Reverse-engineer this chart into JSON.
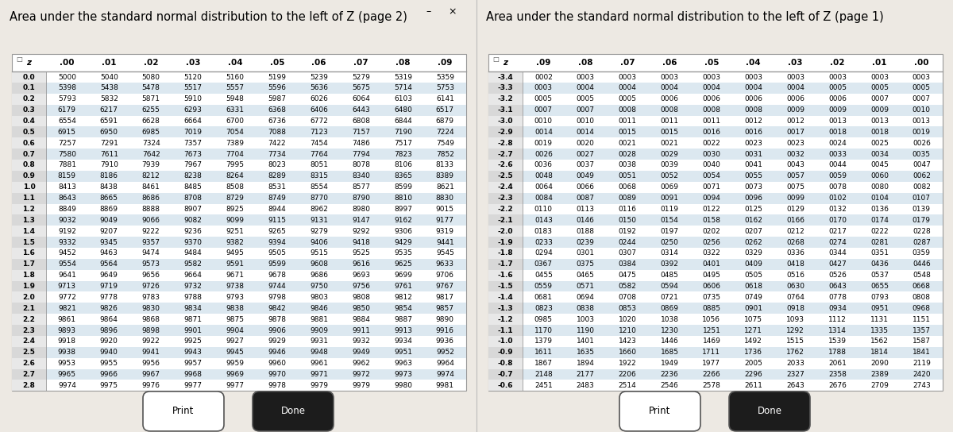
{
  "page2_title": "Area under the standard normal distribution to the left of Z (page 2)",
  "page1_title": "Area under the standard normal distribution to the left of Z (page 1)",
  "page2_cols": [
    ".00",
    ".01",
    ".02",
    ".03",
    ".04",
    ".05",
    ".06",
    ".07",
    ".08",
    ".09"
  ],
  "page2_rows": [
    [
      "0.0",
      "5000",
      "5040",
      "5080",
      "5120",
      "5160",
      "5199",
      "5239",
      "5279",
      "5319",
      "5359"
    ],
    [
      "0.1",
      "5398",
      "5438",
      "5478",
      "5517",
      "5557",
      "5596",
      "5636",
      "5675",
      "5714",
      "5753"
    ],
    [
      "0.2",
      "5793",
      "5832",
      "5871",
      "5910",
      "5948",
      "5987",
      "6026",
      "6064",
      "6103",
      "6141"
    ],
    [
      "0.3",
      "6179",
      "6217",
      "6255",
      "6293",
      "6331",
      "6368",
      "6406",
      "6443",
      "6480",
      "6517"
    ],
    [
      "0.4",
      "6554",
      "6591",
      "6628",
      "6664",
      "6700",
      "6736",
      "6772",
      "6808",
      "6844",
      "6879"
    ],
    [
      "0.5",
      "6915",
      "6950",
      "6985",
      "7019",
      "7054",
      "7088",
      "7123",
      "7157",
      "7190",
      "7224"
    ],
    [
      "0.6",
      "7257",
      "7291",
      "7324",
      "7357",
      "7389",
      "7422",
      "7454",
      "7486",
      "7517",
      "7549"
    ],
    [
      "0.7",
      "7580",
      "7611",
      "7642",
      "7673",
      "7704",
      "7734",
      "7764",
      "7794",
      "7823",
      "7852"
    ],
    [
      "0.8",
      "7881",
      "7910",
      "7939",
      "7967",
      "7995",
      "8023",
      "8051",
      "8078",
      "8106",
      "8133"
    ],
    [
      "0.9",
      "8159",
      "8186",
      "8212",
      "8238",
      "8264",
      "8289",
      "8315",
      "8340",
      "8365",
      "8389"
    ],
    [
      "1.0",
      "8413",
      "8438",
      "8461",
      "8485",
      "8508",
      "8531",
      "8554",
      "8577",
      "8599",
      "8621"
    ],
    [
      "1.1",
      "8643",
      "8665",
      "8686",
      "8708",
      "8729",
      "8749",
      "8770",
      "8790",
      "8810",
      "8830"
    ],
    [
      "1.2",
      "8849",
      "8869",
      "8888",
      "8907",
      "8925",
      "8944",
      "8962",
      "8980",
      "8997",
      "9015"
    ],
    [
      "1.3",
      "9032",
      "9049",
      "9066",
      "9082",
      "9099",
      "9115",
      "9131",
      "9147",
      "9162",
      "9177"
    ],
    [
      "1.4",
      "9192",
      "9207",
      "9222",
      "9236",
      "9251",
      "9265",
      "9279",
      "9292",
      "9306",
      "9319"
    ],
    [
      "1.5",
      "9332",
      "9345",
      "9357",
      "9370",
      "9382",
      "9394",
      "9406",
      "9418",
      "9429",
      "9441"
    ],
    [
      "1.6",
      "9452",
      "9463",
      "9474",
      "9484",
      "9495",
      "9505",
      "9515",
      "9525",
      "9535",
      "9545"
    ],
    [
      "1.7",
      "9554",
      "9564",
      "9573",
      "9582",
      "9591",
      "9599",
      "9608",
      "9616",
      "9625",
      "9633"
    ],
    [
      "1.8",
      "9641",
      "9649",
      "9656",
      "9664",
      "9671",
      "9678",
      "9686",
      "9693",
      "9699",
      "9706"
    ],
    [
      "1.9",
      "9713",
      "9719",
      "9726",
      "9732",
      "9738",
      "9744",
      "9750",
      "9756",
      "9761",
      "9767"
    ],
    [
      "2.0",
      "9772",
      "9778",
      "9783",
      "9788",
      "9793",
      "9798",
      "9803",
      "9808",
      "9812",
      "9817"
    ],
    [
      "2.1",
      "9821",
      "9826",
      "9830",
      "9834",
      "9838",
      "9842",
      "9846",
      "9850",
      "9854",
      "9857"
    ],
    [
      "2.2",
      "9861",
      "9864",
      "9868",
      "9871",
      "9875",
      "9878",
      "9881",
      "9884",
      "9887",
      "9890"
    ],
    [
      "2.3",
      "9893",
      "9896",
      "9898",
      "9901",
      "9904",
      "9906",
      "9909",
      "9911",
      "9913",
      "9916"
    ],
    [
      "2.4",
      "9918",
      "9920",
      "9922",
      "9925",
      "9927",
      "9929",
      "9931",
      "9932",
      "9934",
      "9936"
    ],
    [
      "2.5",
      "9938",
      "9940",
      "9941",
      "9943",
      "9945",
      "9946",
      "9948",
      "9949",
      "9951",
      "9952"
    ],
    [
      "2.6",
      "9953",
      "9955",
      "9956",
      "9957",
      "9959",
      "9960",
      "9961",
      "9962",
      "9963",
      "9964"
    ],
    [
      "2.7",
      "9965",
      "9966",
      "9967",
      "9968",
      "9969",
      "9970",
      "9971",
      "9972",
      "9973",
      "9974"
    ],
    [
      "2.8",
      "9974",
      "9975",
      "9976",
      "9977",
      "9977",
      "9978",
      "9979",
      "9979",
      "9980",
      "9981"
    ]
  ],
  "page1_cols": [
    ".09",
    ".08",
    ".07",
    ".06",
    ".05",
    ".04",
    ".03",
    ".02",
    ".01",
    ".00"
  ],
  "page1_rows": [
    [
      "-3.4",
      "0002",
      "0003",
      "0003",
      "0003",
      "0003",
      "0003",
      "0003",
      "0003",
      "0003",
      "0003"
    ],
    [
      "-3.3",
      "0003",
      "0004",
      "0004",
      "0004",
      "0004",
      "0004",
      "0004",
      "0005",
      "0005",
      "0005"
    ],
    [
      "-3.2",
      "0005",
      "0005",
      "0005",
      "0006",
      "0006",
      "0006",
      "0006",
      "0006",
      "0007",
      "0007"
    ],
    [
      "-3.1",
      "0007",
      "0007",
      "0008",
      "0008",
      "0008",
      "0008",
      "0009",
      "0009",
      "0009",
      "0010"
    ],
    [
      "-3.0",
      "0010",
      "0010",
      "0011",
      "0011",
      "0011",
      "0012",
      "0012",
      "0013",
      "0013",
      "0013"
    ],
    [
      "-2.9",
      "0014",
      "0014",
      "0015",
      "0015",
      "0016",
      "0016",
      "0017",
      "0018",
      "0018",
      "0019"
    ],
    [
      "-2.8",
      "0019",
      "0020",
      "0021",
      "0021",
      "0022",
      "0023",
      "0023",
      "0024",
      "0025",
      "0026"
    ],
    [
      "-2.7",
      "0026",
      "0027",
      "0028",
      "0029",
      "0030",
      "0031",
      "0032",
      "0033",
      "0034",
      "0035"
    ],
    [
      "-2.6",
      "0036",
      "0037",
      "0038",
      "0039",
      "0040",
      "0041",
      "0043",
      "0044",
      "0045",
      "0047"
    ],
    [
      "-2.5",
      "0048",
      "0049",
      "0051",
      "0052",
      "0054",
      "0055",
      "0057",
      "0059",
      "0060",
      "0062"
    ],
    [
      "-2.4",
      "0064",
      "0066",
      "0068",
      "0069",
      "0071",
      "0073",
      "0075",
      "0078",
      "0080",
      "0082"
    ],
    [
      "-2.3",
      "0084",
      "0087",
      "0089",
      "0091",
      "0094",
      "0096",
      "0099",
      "0102",
      "0104",
      "0107"
    ],
    [
      "-2.2",
      "0110",
      "0113",
      "0116",
      "0119",
      "0122",
      "0125",
      "0129",
      "0132",
      "0136",
      "0139"
    ],
    [
      "-2.1",
      "0143",
      "0146",
      "0150",
      "0154",
      "0158",
      "0162",
      "0166",
      "0170",
      "0174",
      "0179"
    ],
    [
      "-2.0",
      "0183",
      "0188",
      "0192",
      "0197",
      "0202",
      "0207",
      "0212",
      "0217",
      "0222",
      "0228"
    ],
    [
      "-1.9",
      "0233",
      "0239",
      "0244",
      "0250",
      "0256",
      "0262",
      "0268",
      "0274",
      "0281",
      "0287"
    ],
    [
      "-1.8",
      "0294",
      "0301",
      "0307",
      "0314",
      "0322",
      "0329",
      "0336",
      "0344",
      "0351",
      "0359"
    ],
    [
      "-1.7",
      "0367",
      "0375",
      "0384",
      "0392",
      "0401",
      "0409",
      "0418",
      "0427",
      "0436",
      "0446"
    ],
    [
      "-1.6",
      "0455",
      "0465",
      "0475",
      "0485",
      "0495",
      "0505",
      "0516",
      "0526",
      "0537",
      "0548"
    ],
    [
      "-1.5",
      "0559",
      "0571",
      "0582",
      "0594",
      "0606",
      "0618",
      "0630",
      "0643",
      "0655",
      "0668"
    ],
    [
      "-1.4",
      "0681",
      "0694",
      "0708",
      "0721",
      "0735",
      "0749",
      "0764",
      "0778",
      "0793",
      "0808"
    ],
    [
      "-1.3",
      "0823",
      "0838",
      "0853",
      "0869",
      "0885",
      "0901",
      "0918",
      "0934",
      "0951",
      "0968"
    ],
    [
      "-1.2",
      "0985",
      "1003",
      "1020",
      "1038",
      "1056",
      "1075",
      "1093",
      "1112",
      "1131",
      "1151"
    ],
    [
      "-1.1",
      "1170",
      "1190",
      "1210",
      "1230",
      "1251",
      "1271",
      "1292",
      "1314",
      "1335",
      "1357"
    ],
    [
      "-1.0",
      "1379",
      "1401",
      "1423",
      "1446",
      "1469",
      "1492",
      "1515",
      "1539",
      "1562",
      "1587"
    ],
    [
      "-0.9",
      "1611",
      "1635",
      "1660",
      "1685",
      "1711",
      "1736",
      "1762",
      "1788",
      "1814",
      "1841"
    ],
    [
      "-0.8",
      "1867",
      "1894",
      "1922",
      "1949",
      "1977",
      "2005",
      "2033",
      "2061",
      "2090",
      "2119"
    ],
    [
      "-0.7",
      "2148",
      "2177",
      "2206",
      "2236",
      "2266",
      "2296",
      "2327",
      "2358",
      "2389",
      "2420"
    ],
    [
      "-0.6",
      "2451",
      "2483",
      "2514",
      "2546",
      "2578",
      "2611",
      "2643",
      "2676",
      "2709",
      "2743"
    ]
  ],
  "bg_color": "#ede9e3",
  "table_bg": "#ffffff",
  "row_shade_color": "#dce8f0",
  "border_color": "#999999",
  "title_fontsize": 10.5,
  "cell_fontsize": 6.5,
  "header_fontsize": 7.5,
  "z_col_bold": true
}
